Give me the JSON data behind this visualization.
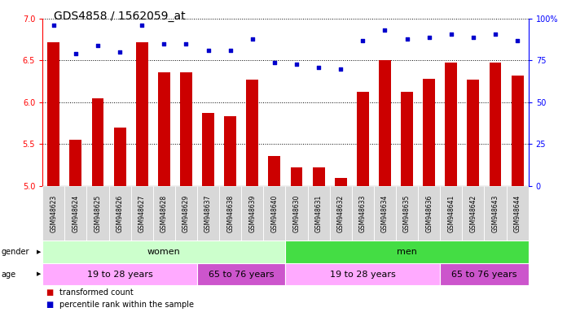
{
  "title": "GDS4858 / 1562059_at",
  "samples": [
    "GSM948623",
    "GSM948624",
    "GSM948625",
    "GSM948626",
    "GSM948627",
    "GSM948628",
    "GSM948629",
    "GSM948637",
    "GSM948638",
    "GSM948639",
    "GSM948640",
    "GSM948630",
    "GSM948631",
    "GSM948632",
    "GSM948633",
    "GSM948634",
    "GSM948635",
    "GSM948636",
    "GSM948641",
    "GSM948642",
    "GSM948643",
    "GSM948644"
  ],
  "transformed_count": [
    6.72,
    5.55,
    6.05,
    5.7,
    6.72,
    6.36,
    6.36,
    5.87,
    5.83,
    6.27,
    5.36,
    5.22,
    5.22,
    5.1,
    6.13,
    6.5,
    6.13,
    6.28,
    6.48,
    6.27,
    6.48,
    6.32
  ],
  "percentile_rank": [
    96,
    79,
    84,
    80,
    96,
    85,
    85,
    81,
    81,
    88,
    74,
    73,
    71,
    70,
    87,
    93,
    88,
    89,
    91,
    89,
    91,
    87
  ],
  "ylim_left": [
    5.0,
    7.0
  ],
  "ylim_right": [
    0,
    100
  ],
  "yticks_left": [
    5.0,
    5.5,
    6.0,
    6.5,
    7.0
  ],
  "yticks_right": [
    0,
    25,
    50,
    75,
    100
  ],
  "bar_color": "#cc0000",
  "dot_color": "#0000cc",
  "gender_groups": [
    {
      "label": "women",
      "start": 0,
      "end": 11,
      "color": "#ccffcc"
    },
    {
      "label": "men",
      "start": 11,
      "end": 22,
      "color": "#44dd44"
    }
  ],
  "age_groups": [
    {
      "label": "19 to 28 years",
      "start": 0,
      "end": 7,
      "color": "#ffaaff"
    },
    {
      "label": "65 to 76 years",
      "start": 7,
      "end": 11,
      "color": "#cc55cc"
    },
    {
      "label": "19 to 28 years",
      "start": 11,
      "end": 18,
      "color": "#ffaaff"
    },
    {
      "label": "65 to 76 years",
      "start": 18,
      "end": 22,
      "color": "#cc55cc"
    }
  ],
  "legend_bar_label": "transformed count",
  "legend_dot_label": "percentile rank within the sample",
  "bg_color": "#ffffff",
  "title_fontsize": 10,
  "cell_color": "#d8d8d8",
  "label_fontsize": 5.5,
  "row_label_fontsize": 8,
  "ytick_fontsize": 7,
  "right_ytick_labels": [
    "0",
    "25",
    "50",
    "75",
    "100%"
  ]
}
